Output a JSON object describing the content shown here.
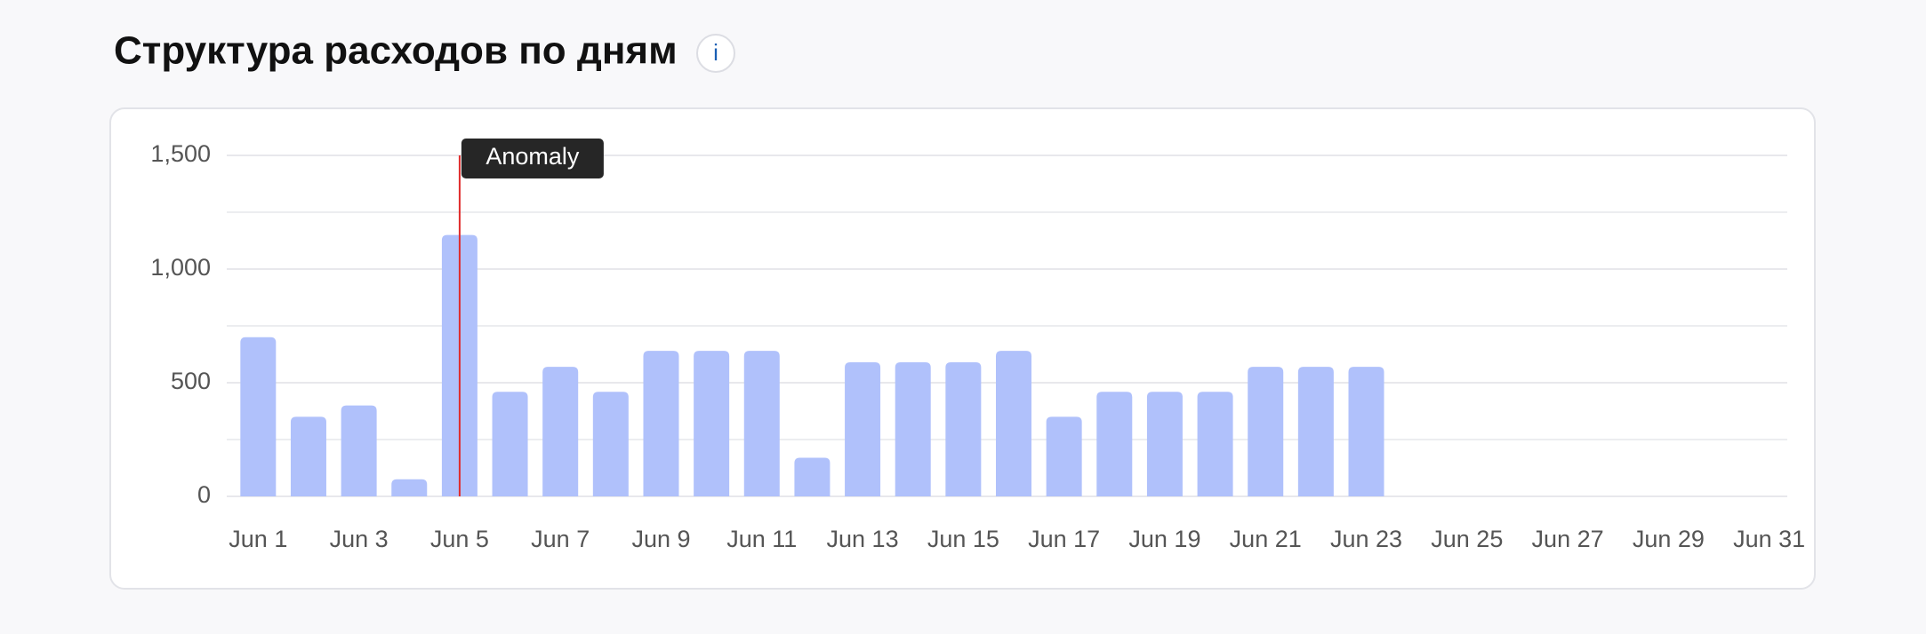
{
  "chart_data": {
    "type": "bar",
    "title": "Структура расходов по дням",
    "info_label": "i",
    "categories": [
      "Jun 1",
      null,
      "Jun 3",
      null,
      "Jun 5",
      null,
      "Jun 7",
      null,
      "Jun 9",
      null,
      "Jun 11",
      null,
      "Jun 13",
      null,
      "Jun 15",
      null,
      "Jun 17",
      null,
      "Jun 19",
      null,
      "Jun 21",
      null,
      "Jun 23",
      null,
      "Jun 25",
      null,
      "Jun 27",
      null,
      "Jun 29",
      null,
      "Jun 31"
    ],
    "values": [
      700,
      350,
      400,
      75,
      1150,
      460,
      570,
      460,
      640,
      640,
      640,
      170,
      590,
      590,
      590,
      640,
      350,
      460,
      460,
      460,
      570,
      570,
      570,
      null,
      null,
      null,
      null,
      null,
      null,
      null,
      null
    ],
    "color": "#b0c1fb",
    "ylim": [
      0,
      1500
    ],
    "yticks": [
      0,
      500,
      {
        "value": 1000,
        "label": "1,000"
      },
      {
        "value": 1500,
        "label": "1,500"
      }
    ],
    "minor_yticks": [
      250,
      750,
      1250
    ],
    "grid": true,
    "annotation": {
      "label": "Anomaly",
      "at": "Jun 5",
      "color": "#e02b2b"
    }
  }
}
